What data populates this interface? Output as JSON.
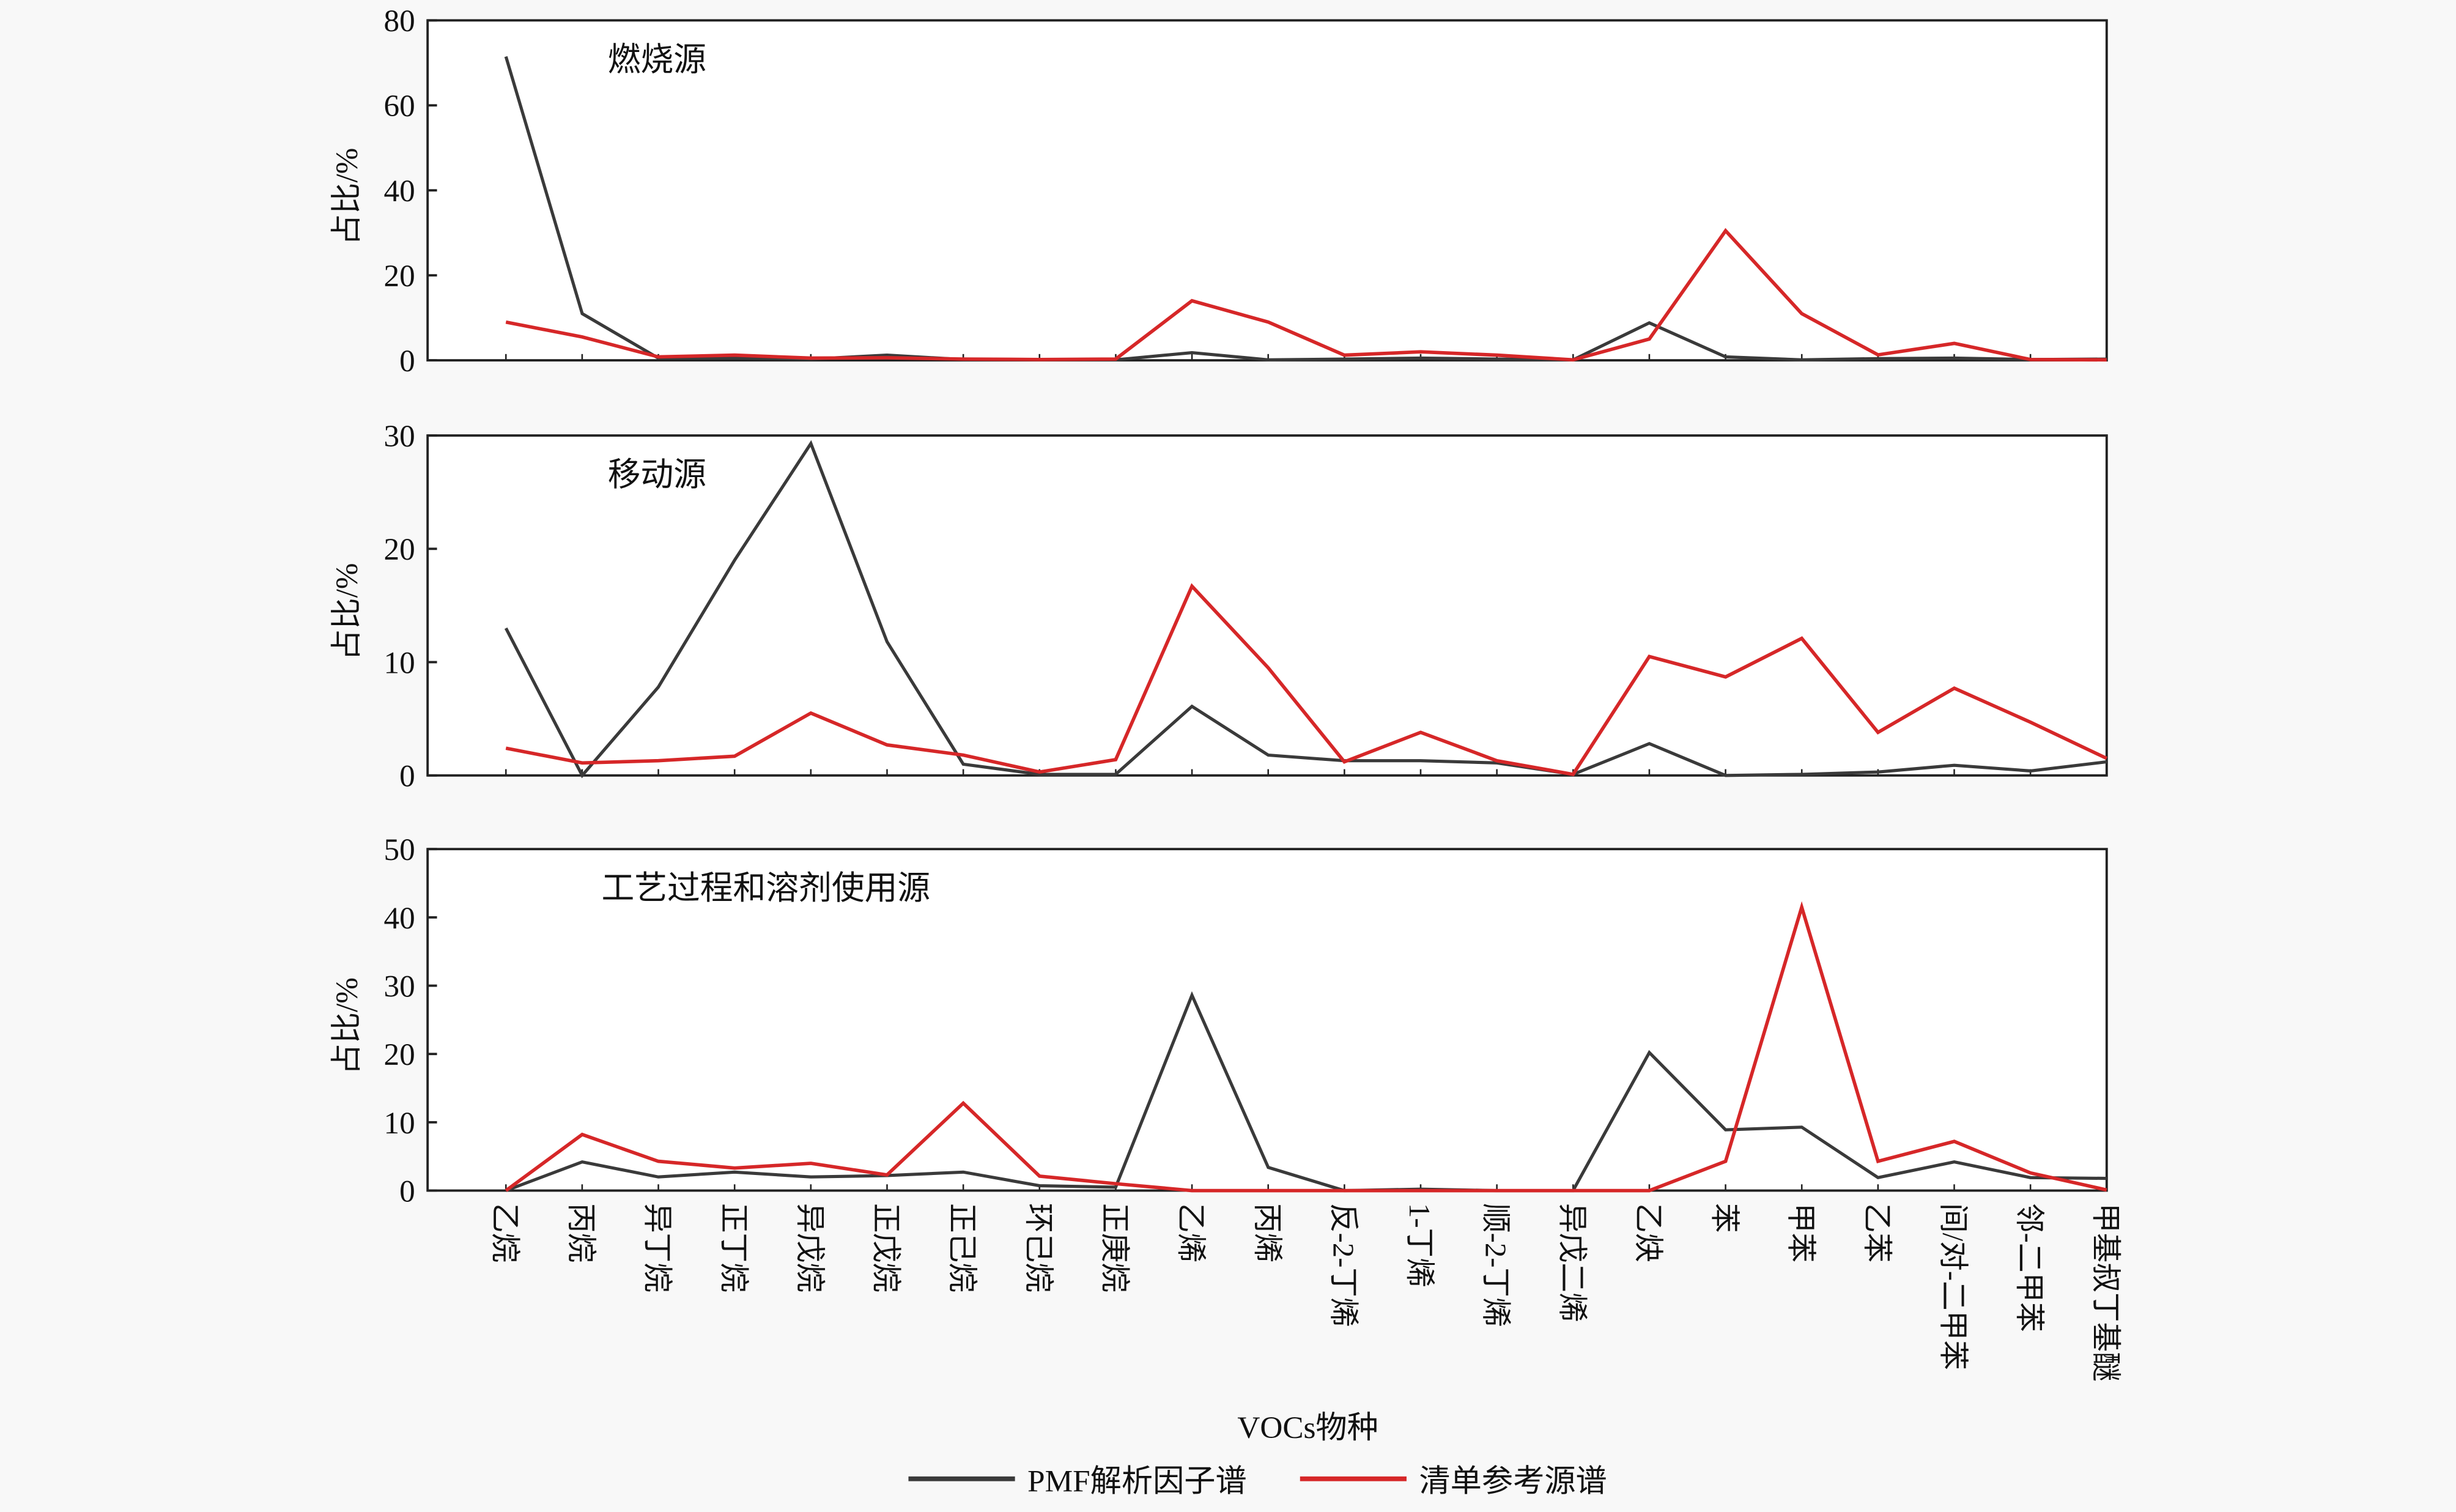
{
  "chart_data": [
    {
      "type": "line",
      "title": "燃烧源",
      "ylabel": "占比/%",
      "ylim": [
        0,
        80
      ],
      "yticks": [
        0,
        20,
        40,
        60,
        80
      ],
      "categories": [
        "乙烷",
        "丙烷",
        "异丁烷",
        "正丁烷",
        "异戊烷",
        "正戊烷",
        "正己烷",
        "环己烷",
        "正庚烷",
        "乙烯",
        "丙烯",
        "反-2-丁烯",
        "1-丁烯",
        "顺-2-丁烯",
        "异戊二烯",
        "乙炔",
        "苯",
        "甲苯",
        "乙苯",
        "间/对-二甲苯",
        "邻-二甲苯",
        "甲基叔丁基醚"
      ],
      "series": [
        {
          "name": "PMF解析因子谱",
          "color": "#3a3a3a",
          "values": [
            71.5,
            11,
            0.5,
            0.5,
            0.3,
            1.2,
            0.2,
            0.1,
            0.1,
            1.8,
            0.1,
            0.3,
            0.5,
            0.3,
            0.1,
            8.8,
            0.8,
            0.1,
            0.4,
            0.5,
            0.2,
            0.3
          ]
        },
        {
          "name": "清单参考源谱",
          "color": "#d62728",
          "values": [
            9,
            5.5,
            0.8,
            1.2,
            0.5,
            0.6,
            0.3,
            0.2,
            0.3,
            14,
            9,
            1.2,
            2,
            1.2,
            0.1,
            5,
            30.5,
            11,
            1.3,
            4,
            0.2,
            0.1
          ]
        }
      ]
    },
    {
      "type": "line",
      "title": "移动源",
      "ylabel": "占比/%",
      "ylim": [
        0,
        30
      ],
      "yticks": [
        0,
        10,
        20,
        30
      ],
      "categories": [
        "乙烷",
        "丙烷",
        "异丁烷",
        "正丁烷",
        "异戊烷",
        "正戊烷",
        "正己烷",
        "环己烷",
        "正庚烷",
        "乙烯",
        "丙烯",
        "反-2-丁烯",
        "1-丁烯",
        "顺-2-丁烯",
        "异戊二烯",
        "乙炔",
        "苯",
        "甲苯",
        "乙苯",
        "间/对-二甲苯",
        "邻-二甲苯",
        "甲基叔丁基醚"
      ],
      "series": [
        {
          "name": "PMF解析因子谱",
          "color": "#3a3a3a",
          "values": [
            13,
            0,
            7.8,
            19,
            29.3,
            11.8,
            1,
            0.1,
            0.1,
            6.1,
            1.8,
            1.3,
            1.3,
            1.1,
            0.1,
            2.8,
            0,
            0.1,
            0.3,
            0.9,
            0.4,
            1.2
          ]
        },
        {
          "name": "清单参考源谱",
          "color": "#d62728",
          "values": [
            2.4,
            1.1,
            1.3,
            1.7,
            5.5,
            2.7,
            1.8,
            0.3,
            1.4,
            16.7,
            9.5,
            1.2,
            3.8,
            1.3,
            0.1,
            10.5,
            8.7,
            12.1,
            3.8,
            7.7,
            4.7,
            1.5
          ]
        }
      ]
    },
    {
      "type": "line",
      "title": "工艺过程和溶剂使用源",
      "ylabel": "占比/%",
      "ylim": [
        0,
        50
      ],
      "yticks": [
        0,
        10,
        20,
        30,
        40,
        50
      ],
      "xlabel": "VOCs物种",
      "categories": [
        "乙烷",
        "丙烷",
        "异丁烷",
        "正丁烷",
        "异戊烷",
        "正戊烷",
        "正己烷",
        "环己烷",
        "正庚烷",
        "乙烯",
        "丙烯",
        "反-2-丁烯",
        "1-丁烯",
        "顺-2-丁烯",
        "异戊二烯",
        "乙炔",
        "苯",
        "甲苯",
        "乙苯",
        "间/对-二甲苯",
        "邻-二甲苯",
        "甲基叔丁基醚"
      ],
      "series": [
        {
          "name": "PMF解析因子谱",
          "color": "#3a3a3a",
          "values": [
            0,
            4.2,
            2,
            2.7,
            2,
            2.2,
            2.7,
            0.7,
            0.5,
            28.6,
            3.4,
            0,
            0.2,
            0,
            0,
            20.2,
            8.9,
            9.3,
            1.9,
            4.2,
            1.9,
            1.8
          ]
        },
        {
          "name": "清单参考源谱",
          "color": "#d62728",
          "values": [
            0,
            8.2,
            4.3,
            3.3,
            4,
            2.3,
            12.8,
            2.1,
            1,
            0,
            0,
            0,
            0,
            0,
            0,
            0,
            4.3,
            41.5,
            4.3,
            7.2,
            2.6,
            0.1
          ]
        }
      ]
    }
  ],
  "legend": {
    "items": [
      {
        "label": "PMF解析因子谱",
        "color": "#3a3a3a"
      },
      {
        "label": "清单参考源谱",
        "color": "#d62728"
      }
    ]
  },
  "xaxis": {
    "label": "VOCs物种"
  }
}
